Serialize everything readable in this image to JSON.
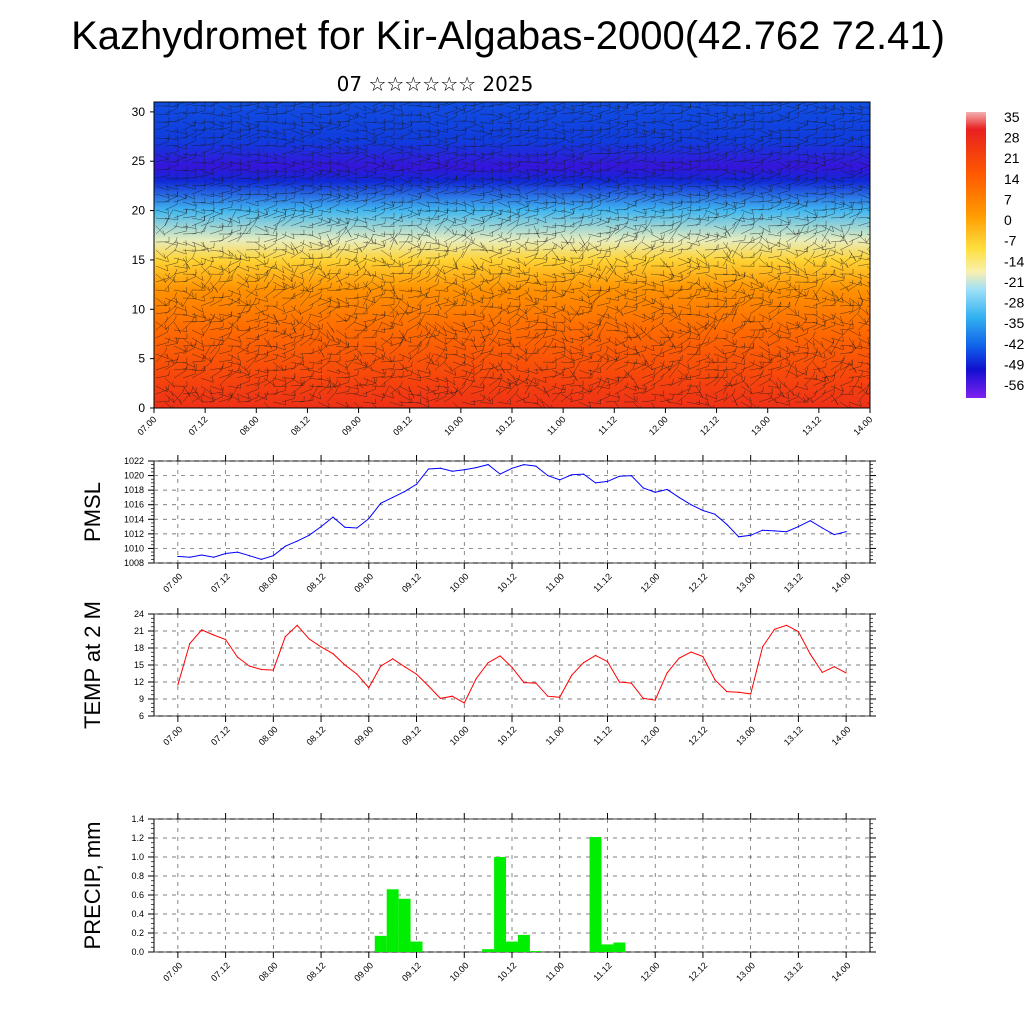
{
  "title": "Kazhydromet for Kir-Algabas-2000(42.762 72.41)",
  "subtitle": "07 ☆☆☆☆☆☆ 2025",
  "time_ticks": [
    "07.00",
    "07.12",
    "08.00",
    "08.12",
    "09.00",
    "09.12",
    "10.00",
    "10.12",
    "11.00",
    "11.12",
    "12.00",
    "12.12",
    "13.00",
    "13.12",
    "14.00"
  ],
  "chart_data": [
    {
      "type": "heatmap",
      "name_hint": "temperature-wind cross-section",
      "xlabel": "",
      "ylabel": "",
      "x_ticks": [
        "07.00",
        "07.12",
        "08.00",
        "08.12",
        "09.00",
        "09.12",
        "10.00",
        "10.12",
        "11.00",
        "11.12",
        "12.00",
        "12.12",
        "13.00",
        "13.12",
        "14.00"
      ],
      "y_ticks": [
        0,
        5,
        10,
        15,
        20,
        25,
        30
      ],
      "ylim": [
        0,
        31
      ],
      "colorbar_labels": [
        "35",
        "28",
        "21",
        "14",
        "7",
        "0",
        "-7",
        "-14",
        "-21",
        "-28",
        "-35",
        "-42",
        "-49",
        "-56"
      ],
      "colorbar_range": [
        -63,
        42
      ],
      "temperature_profile": [
        {
          "level": 0,
          "value": 31
        },
        {
          "level": 3,
          "value": 25
        },
        {
          "level": 8,
          "value": 15
        },
        {
          "level": 12,
          "value": 6
        },
        {
          "level": 15,
          "value": -6
        },
        {
          "level": 17,
          "value": -18
        },
        {
          "level": 20,
          "value": -32
        },
        {
          "level": 23,
          "value": -50
        },
        {
          "level": 24.5,
          "value": -56
        },
        {
          "level": 27,
          "value": -48
        },
        {
          "level": 31,
          "value": -46
        }
      ],
      "overlay": "wind barbs"
    },
    {
      "type": "line",
      "ylabel": "PMSL",
      "ylim": [
        1008,
        1022
      ],
      "y_ticks": [
        1008,
        1010,
        1012,
        1014,
        1016,
        1018,
        1020,
        1022
      ],
      "xlim": [
        -0.25,
        7.25
      ],
      "x_ticks": [
        "07.00",
        "07.12",
        "08.00",
        "08.12",
        "09.00",
        "09.12",
        "10.00",
        "10.12",
        "11.00",
        "11.12",
        "12.00",
        "12.12",
        "13.00",
        "13.12",
        "14.00"
      ],
      "color": "#0000ff",
      "x": [
        0,
        0.125,
        0.25,
        0.375,
        0.5,
        0.625,
        0.75,
        0.875,
        1,
        1.125,
        1.25,
        1.375,
        1.5,
        1.625,
        1.75,
        1.875,
        2,
        2.125,
        2.25,
        2.375,
        2.5,
        2.625,
        2.75,
        2.875,
        3,
        3.125,
        3.25,
        3.375,
        3.5,
        3.625,
        3.75,
        3.875,
        4,
        4.125,
        4.25,
        4.375,
        4.5,
        4.625,
        4.75,
        4.875,
        5,
        5.125,
        5.25,
        5.375,
        5.5,
        5.625,
        5.75,
        5.875,
        6,
        6.125,
        6.25,
        6.375,
        6.5,
        6.625,
        6.75,
        6.875,
        7
      ],
      "values": [
        1008.9,
        1008.8,
        1009.1,
        1008.8,
        1009.3,
        1009.5,
        1009.0,
        1008.5,
        1009.0,
        1010.3,
        1011.0,
        1011.8,
        1013.0,
        1014.3,
        1012.9,
        1012.8,
        1014.1,
        1016.2,
        1017.0,
        1017.8,
        1018.8,
        1020.9,
        1021.0,
        1020.6,
        1020.8,
        1021.1,
        1021.5,
        1020.2,
        1021.0,
        1021.5,
        1021.3,
        1020.0,
        1019.4,
        1020.1,
        1020.2,
        1019.0,
        1019.2,
        1019.9,
        1020.0,
        1018.3,
        1017.7,
        1018.1,
        1017.0,
        1016.0,
        1015.2,
        1014.7,
        1013.3,
        1011.6,
        1011.8,
        1012.5,
        1012.4,
        1012.3,
        1013.0,
        1013.8,
        1012.8,
        1011.9,
        1012.3
      ]
    },
    {
      "type": "line",
      "ylabel": "TEMP at 2 M",
      "ylim": [
        6,
        24
      ],
      "y_ticks": [
        6,
        9,
        12,
        15,
        18,
        21,
        24
      ],
      "xlim": [
        -0.25,
        7.25
      ],
      "x_ticks": [
        "07.00",
        "07.12",
        "08.00",
        "08.12",
        "09.00",
        "09.12",
        "10.00",
        "10.12",
        "11.00",
        "11.12",
        "12.00",
        "12.12",
        "13.00",
        "13.12",
        "14.00"
      ],
      "color": "#ff0000",
      "x": [
        0,
        0.125,
        0.25,
        0.375,
        0.5,
        0.625,
        0.75,
        0.875,
        1,
        1.125,
        1.25,
        1.375,
        1.5,
        1.625,
        1.75,
        1.875,
        2,
        2.125,
        2.25,
        2.375,
        2.5,
        2.625,
        2.75,
        2.875,
        3,
        3.125,
        3.25,
        3.375,
        3.5,
        3.625,
        3.75,
        3.875,
        4,
        4.125,
        4.25,
        4.375,
        4.5,
        4.625,
        4.75,
        4.875,
        5,
        5.125,
        5.25,
        5.375,
        5.5,
        5.625,
        5.75,
        5.875,
        6,
        6.125,
        6.25,
        6.375,
        6.5,
        6.625,
        6.75,
        6.875,
        7
      ],
      "values": [
        11.5,
        18.8,
        21.2,
        20.3,
        19.5,
        16.4,
        14.8,
        14.2,
        14.1,
        20.0,
        22.0,
        19.6,
        18.2,
        17.0,
        15.0,
        13.4,
        11.0,
        14.8,
        16.1,
        14.7,
        13.4,
        11.3,
        9.1,
        9.5,
        8.3,
        12.6,
        15.4,
        16.6,
        14.6,
        11.9,
        11.8,
        9.5,
        9.3,
        13.2,
        15.4,
        16.7,
        15.6,
        12.0,
        11.8,
        9.1,
        8.8,
        13.6,
        16.2,
        17.3,
        16.5,
        12.4,
        10.3,
        10.2,
        9.9,
        18.2,
        21.3,
        22.0,
        20.9,
        16.9,
        13.7,
        14.7,
        13.6
      ]
    },
    {
      "type": "bar",
      "ylabel": "PRECIP, mm",
      "ylim": [
        0,
        1.4
      ],
      "y_ticks": [
        "0.0",
        "0.2",
        "0.4",
        "0.6",
        "0.8",
        "1.0",
        "1.2",
        "1.4"
      ],
      "xlim": [
        -0.25,
        7.25
      ],
      "x_ticks": [
        "07.00",
        "07.12",
        "08.00",
        "08.12",
        "09.00",
        "09.12",
        "10.00",
        "10.12",
        "11.00",
        "11.12",
        "12.00",
        "12.12",
        "13.00",
        "13.12",
        "14.00"
      ],
      "color": "#00ee00",
      "bars": [
        {
          "x": 2.125,
          "value": 0.17
        },
        {
          "x": 2.25,
          "value": 0.66
        },
        {
          "x": 2.375,
          "value": 0.56
        },
        {
          "x": 2.5,
          "value": 0.11
        },
        {
          "x": 3.25,
          "value": 0.03
        },
        {
          "x": 3.375,
          "value": 1.0
        },
        {
          "x": 3.5,
          "value": 0.11
        },
        {
          "x": 3.625,
          "value": 0.18
        },
        {
          "x": 3.75,
          "value": 0.01
        },
        {
          "x": 4.375,
          "value": 1.21
        },
        {
          "x": 4.5,
          "value": 0.08
        },
        {
          "x": 4.625,
          "value": 0.1
        }
      ]
    }
  ]
}
